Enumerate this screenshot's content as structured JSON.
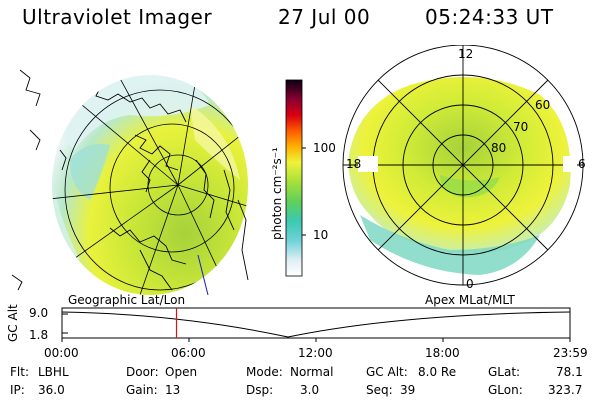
{
  "header": {
    "title": "Ultraviolet Imager",
    "date": "27 Jul 00",
    "time": "05:24:33 UT"
  },
  "colorbar": {
    "label": "photon cm⁻²s⁻¹",
    "ticks": [
      "100",
      "10"
    ]
  },
  "polar_plot": {
    "mlt_labels": {
      "top": "12",
      "left": "18",
      "right": "6",
      "bottom": "0"
    },
    "lat_labels": [
      "60",
      "70",
      "80"
    ]
  },
  "map_titles": {
    "left": "Geographic Lat/Lon",
    "right": "Apex MLat/MLT"
  },
  "altitude_plot": {
    "ylabel": "GC Alt",
    "y_top": "9.0",
    "y_bottom": "1.8",
    "x_ticks": [
      "00:00",
      "06:00",
      "12:00",
      "18:00",
      "23:59"
    ],
    "current_time_hours": 5.41
  },
  "info": {
    "flt_label": "Flt:",
    "flt_value": "LBHL",
    "ip_label": "IP:",
    "ip_value": "36.0",
    "door_label": "Door:",
    "door_value": "Open",
    "gain_label": "Gain:",
    "gain_value": "13",
    "mode_label": "Mode:",
    "mode_value": "Normal",
    "dsp_label": "Dsp:",
    "dsp_value": "3.0",
    "gcalt_label": "GC Alt:",
    "gcalt_value": "8.0 Re",
    "seq_label": "Seq:",
    "seq_value": "39",
    "glat_label": "GLat:",
    "glat_value": "78.1",
    "glon_label": "GLon:",
    "glon_value": "323.7"
  },
  "colors": {
    "marker": "#e01010"
  }
}
